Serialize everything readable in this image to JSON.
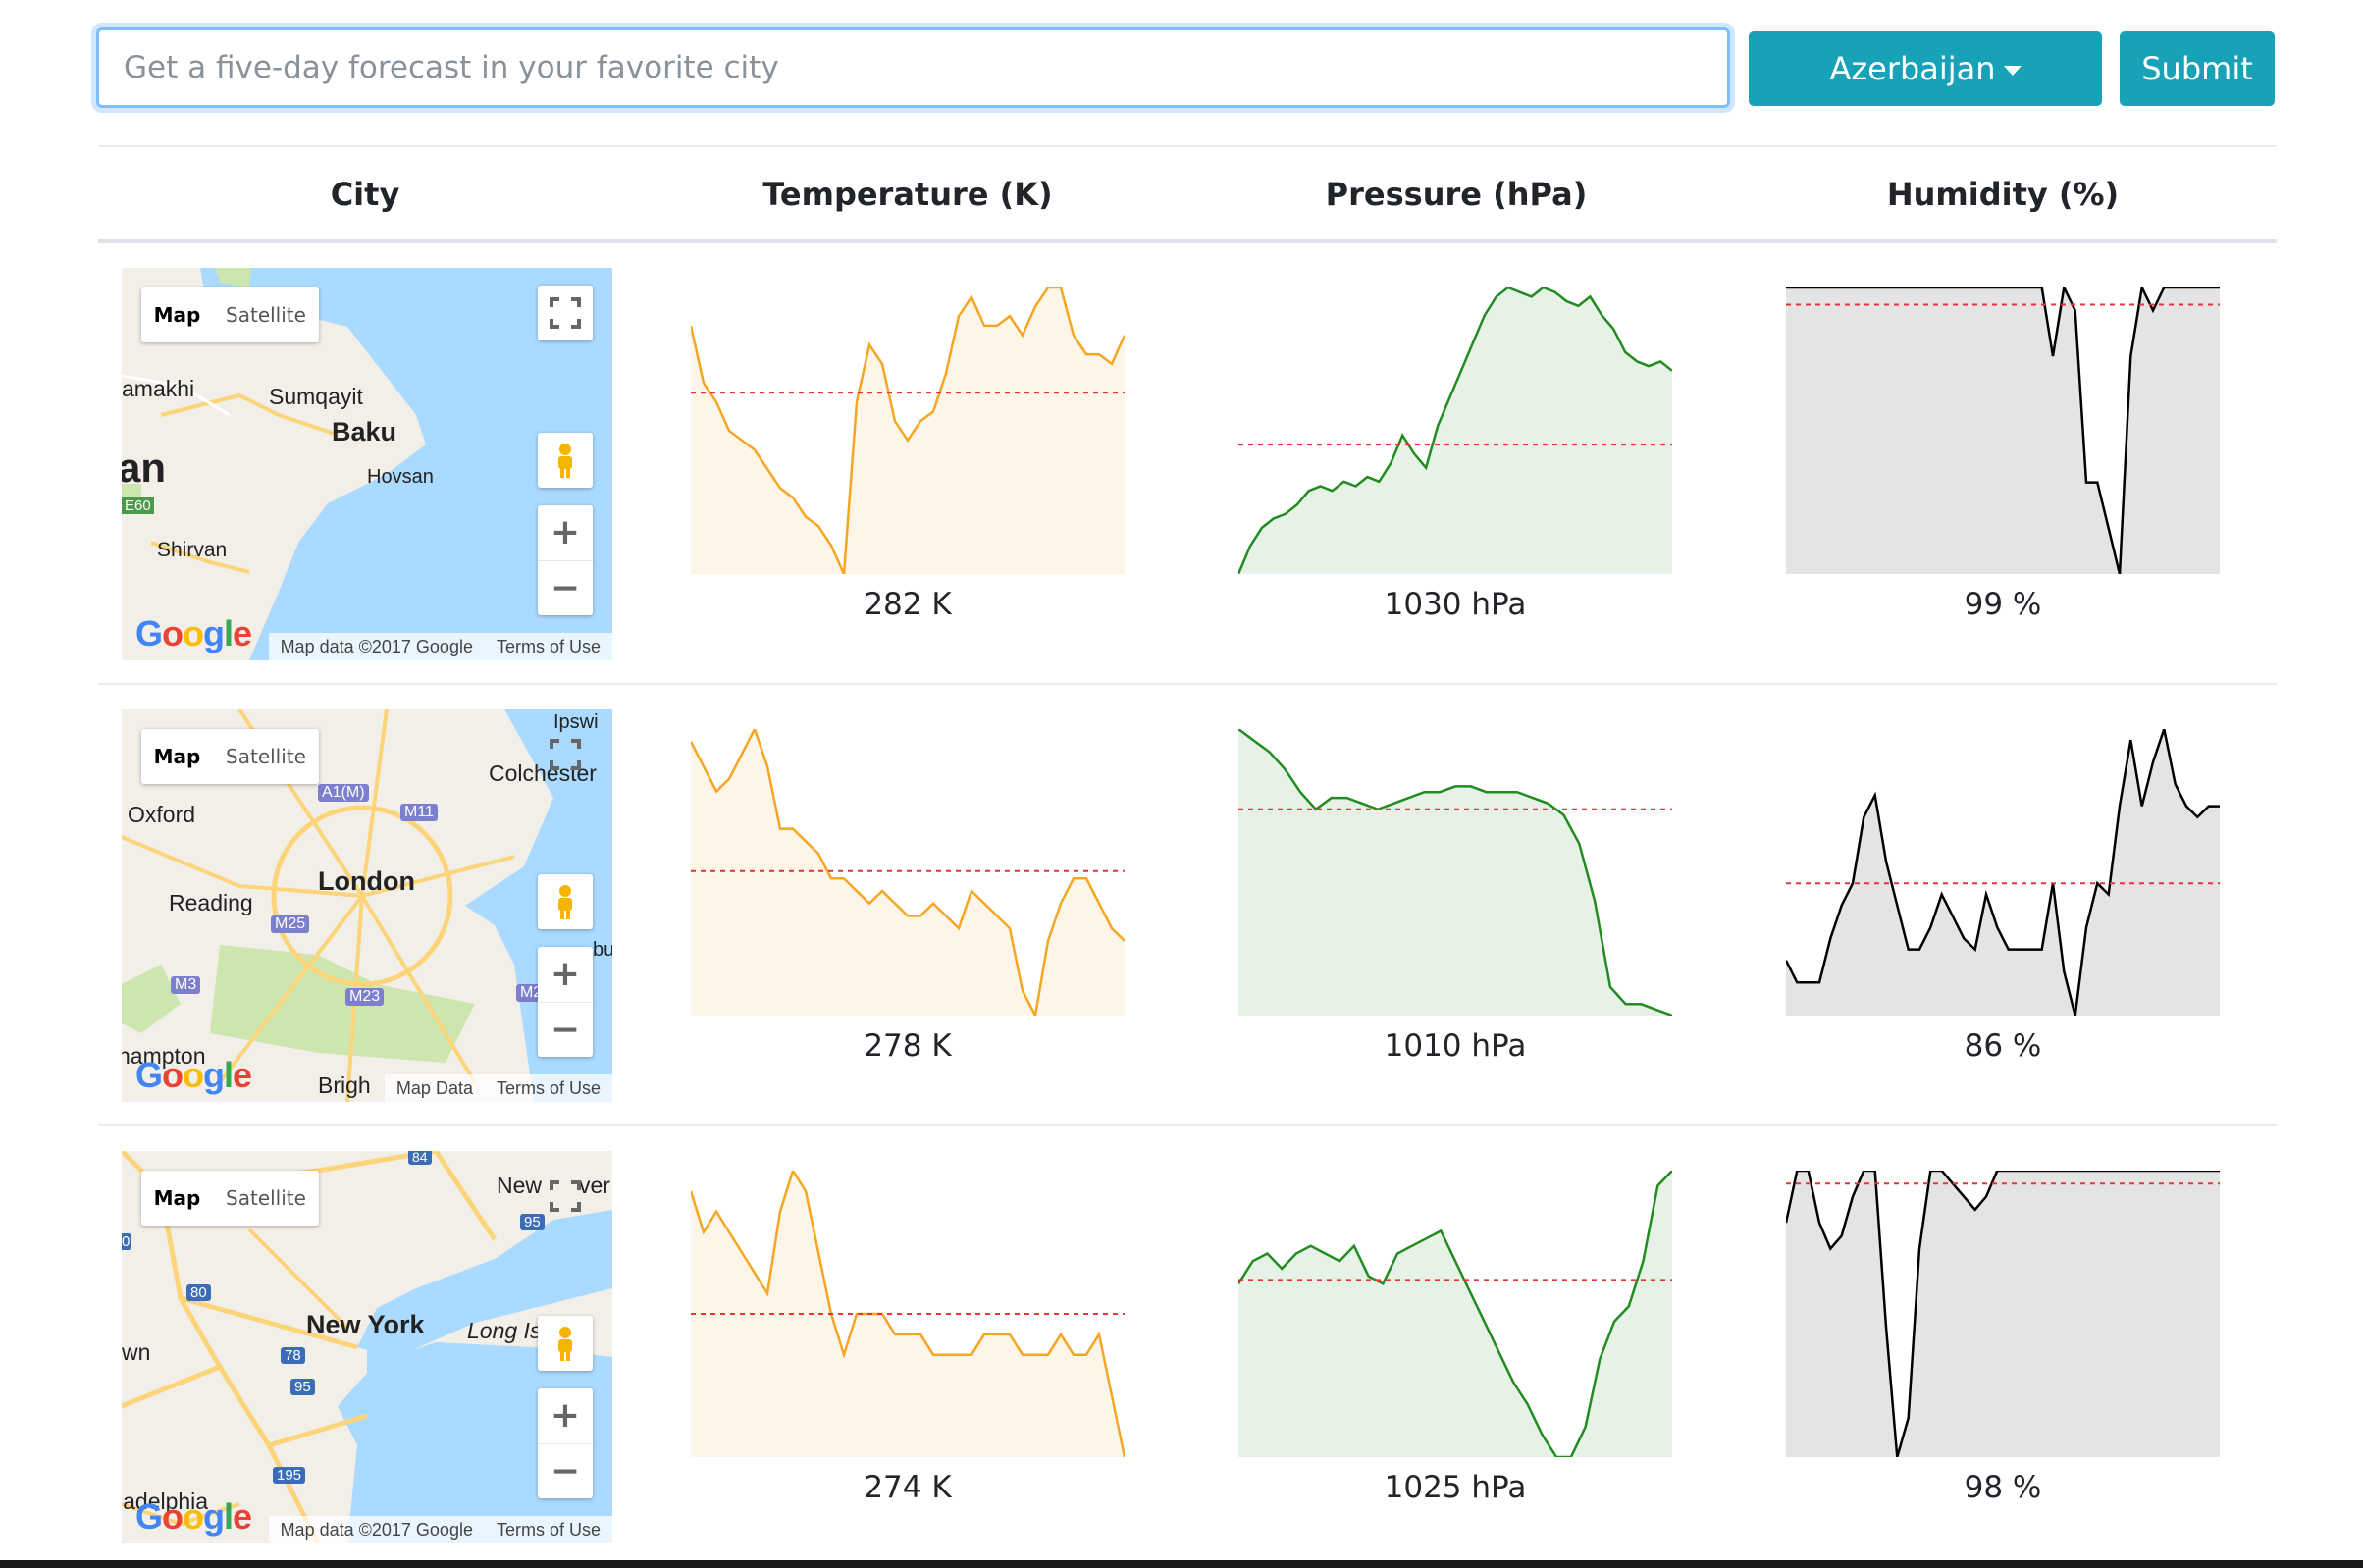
{
  "search": {
    "placeholder": "Get a five-day forecast in your favorite city",
    "value": ""
  },
  "country_button": {
    "label": "Azerbaijan"
  },
  "submit_button": {
    "label": "Submit"
  },
  "table": {
    "headers": [
      "City",
      "Temperature (K)",
      "Pressure (hPa)",
      "Humidity (%)"
    ]
  },
  "map_controls": {
    "map_label": "Map",
    "satellite_label": "Satellite",
    "terms": "Terms of Use",
    "zoom_in": "+",
    "zoom_out": "−"
  },
  "rows": [
    {
      "map": {
        "attribution": "Map data ©2017 Google",
        "places": [
          "amakhi",
          "Sumqayit",
          "Baku",
          "Hovsan",
          "an",
          "E60",
          "Shirvan"
        ]
      },
      "temperature": {
        "value": "282 K",
        "series": [
          290,
          284,
          282,
          279,
          278,
          277,
          275,
          273,
          272,
          270,
          269,
          267,
          264,
          282,
          288,
          286,
          280,
          278,
          280,
          281,
          285,
          291,
          293,
          290,
          290,
          291,
          289,
          292,
          294,
          294,
          289,
          287,
          287,
          286,
          289
        ],
        "avg": 283
      },
      "pressure": {
        "value": "1030 hPa",
        "series": [
          1002,
          1008,
          1012,
          1014,
          1015,
          1017,
          1020,
          1021,
          1020,
          1022,
          1021,
          1023,
          1022,
          1026,
          1032,
          1028,
          1025,
          1034,
          1040,
          1046,
          1052,
          1058,
          1062,
          1064,
          1063,
          1062,
          1064,
          1063,
          1061,
          1060,
          1062,
          1058,
          1055,
          1050,
          1048,
          1047,
          1048,
          1046
        ],
        "avg": 1030
      },
      "humidity": {
        "value": "99 %",
        "series": [
          100,
          100,
          100,
          100,
          100,
          100,
          100,
          100,
          100,
          100,
          100,
          100,
          100,
          100,
          100,
          100,
          100,
          100,
          100,
          100,
          100,
          100,
          100,
          100,
          88,
          100,
          96,
          66,
          66,
          58,
          50,
          88,
          100,
          96,
          100,
          100,
          100,
          100,
          100,
          100
        ],
        "avg": 97
      }
    },
    {
      "map": {
        "attribution": "Map Data",
        "places": [
          "Ipswi",
          "Colchester",
          "Oxford",
          "A1(M)",
          "M11",
          "London",
          "Reading",
          "M25",
          "M3",
          "M23",
          "M2",
          "nampton",
          "Brigh",
          "bu"
        ]
      },
      "temperature": {
        "value": "278 K",
        "series": [
          285,
          283,
          281,
          282,
          284,
          286,
          283,
          278,
          278,
          277,
          276,
          274,
          274,
          273,
          272,
          273,
          272,
          271,
          271,
          272,
          271,
          270,
          273,
          272,
          271,
          270,
          265,
          263,
          269,
          272,
          274,
          274,
          272,
          270,
          269
        ],
        "avg": 274.6
      },
      "pressure": {
        "value": "1010 hPa",
        "series": [
          1030,
          1028,
          1026,
          1023,
          1019,
          1016,
          1018,
          1018,
          1017,
          1016,
          1017,
          1018,
          1019,
          1019,
          1020,
          1020,
          1019,
          1019,
          1019,
          1018,
          1017,
          1015,
          1010,
          1000,
          985,
          982,
          982,
          981,
          980
        ],
        "avg": 1016
      },
      "humidity": {
        "value": "86 %",
        "series": [
          79,
          77,
          77,
          77,
          81,
          84,
          86,
          92,
          94,
          88,
          84,
          80,
          80,
          82,
          85,
          83,
          81,
          80,
          85,
          82,
          80,
          80,
          80,
          80,
          86,
          78,
          74,
          82,
          86,
          85,
          93,
          99,
          93,
          97,
          100,
          95,
          93,
          92,
          93,
          93
        ],
        "avg": 86
      },
      "unused": null
    },
    {
      "map": {
        "attribution": "Map data ©2017 Google",
        "places": [
          "84",
          "New",
          "ver",
          "95",
          "80",
          "New York",
          "Long Is",
          "78",
          "95",
          "wn",
          "195",
          "ladelphia",
          "0"
        ]
      },
      "temperature": {
        "value": "274 K",
        "series": [
          282,
          280,
          281,
          280,
          279,
          278,
          277,
          281,
          283,
          282,
          279,
          276,
          274,
          276,
          276,
          276,
          275,
          275,
          275,
          274,
          274,
          274,
          274,
          275,
          275,
          275,
          274,
          274,
          274,
          275,
          274,
          274,
          275,
          272,
          269
        ],
        "avg": 276
      },
      "pressure": {
        "value": "1025 hPa",
        "series": [
          1025,
          1028,
          1029,
          1027,
          1029,
          1030,
          1029,
          1028,
          1030,
          1026,
          1025,
          1029,
          1030,
          1031,
          1032,
          1028,
          1024,
          1020,
          1016,
          1012,
          1009,
          1005,
          1002,
          1002,
          1006,
          1015,
          1020,
          1022,
          1028,
          1038,
          1040
        ],
        "avg": 1025.5
      },
      "humidity": {
        "value": "98 %",
        "series": [
          96,
          100,
          100,
          96,
          94,
          95,
          98,
          100,
          100,
          88,
          78,
          81,
          94,
          100,
          100,
          99,
          98,
          97,
          98,
          100,
          100,
          100,
          100,
          100,
          100,
          100,
          100,
          100,
          100,
          100,
          100,
          100,
          100,
          100,
          100,
          100,
          100,
          100,
          100,
          100
        ],
        "avg": 99
      }
    }
  ],
  "colors": {
    "temperature": "#f5a623",
    "pressure": "#228b22",
    "humidity": "#000000",
    "average_line": "#e8333d",
    "button": "#17a2b8"
  }
}
